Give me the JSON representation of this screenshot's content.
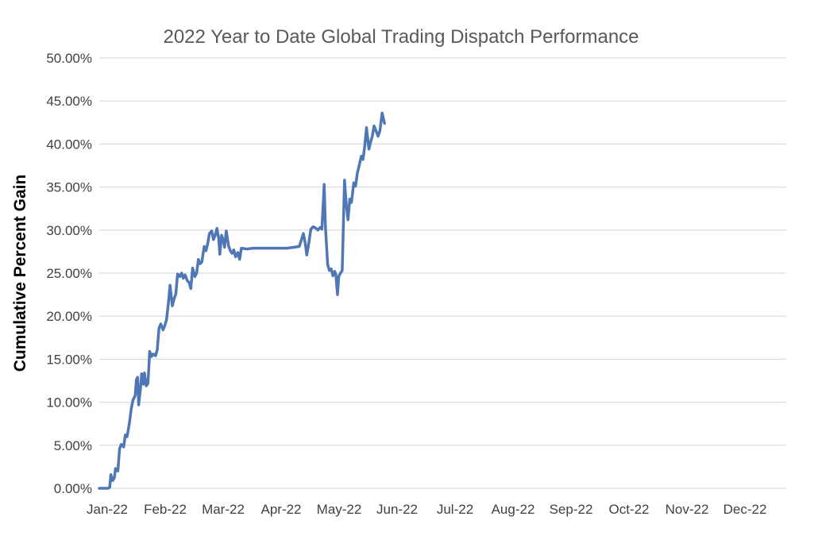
{
  "chart_data": {
    "type": "line",
    "title": "2022 Year to Date Global Trading Dispatch Performance",
    "xlabel": "",
    "ylabel": "Cumulative Percent Gain",
    "x_tick_labels": [
      "Jan-22",
      "Feb-22",
      "Mar-22",
      "Apr-22",
      "May-22",
      "Jun-22",
      "Jul-22",
      "Aug-22",
      "Sep-22",
      "Oct-22",
      "Nov-22",
      "Dec-22"
    ],
    "y_tick_labels": [
      "0.00%",
      "5.00%",
      "10.00%",
      "15.00%",
      "20.00%",
      "25.00%",
      "30.00%",
      "35.00%",
      "40.00%",
      "45.00%",
      "50.00%"
    ],
    "ylim": [
      0,
      50
    ],
    "xlim_months": [
      0,
      12
    ],
    "grid": "horizontal",
    "legend": "none",
    "line_color": "#4f77b6",
    "grid_color": "#d6d6d6",
    "series": [
      {
        "name": "Cumulative Percent Gain",
        "units": "percent",
        "x_units": "months since Jan-22",
        "points": [
          [
            0.0,
            0.0
          ],
          [
            0.15,
            0.0
          ],
          [
            0.18,
            0.1
          ],
          [
            0.2,
            1.6
          ],
          [
            0.23,
            0.9
          ],
          [
            0.26,
            1.2
          ],
          [
            0.28,
            2.3
          ],
          [
            0.32,
            2.0
          ],
          [
            0.35,
            4.6
          ],
          [
            0.38,
            5.1
          ],
          [
            0.42,
            4.8
          ],
          [
            0.45,
            6.2
          ],
          [
            0.48,
            6.0
          ],
          [
            0.52,
            7.6
          ],
          [
            0.55,
            9.2
          ],
          [
            0.58,
            10.2
          ],
          [
            0.62,
            10.8
          ],
          [
            0.64,
            12.6
          ],
          [
            0.66,
            12.9
          ],
          [
            0.68,
            9.7
          ],
          [
            0.71,
            11.5
          ],
          [
            0.73,
            13.3
          ],
          [
            0.76,
            12.1
          ],
          [
            0.78,
            13.4
          ],
          [
            0.81,
            11.9
          ],
          [
            0.84,
            12.2
          ],
          [
            0.87,
            15.9
          ],
          [
            0.9,
            15.3
          ],
          [
            0.93,
            15.6
          ],
          [
            0.97,
            15.4
          ],
          [
            1.0,
            16.1
          ],
          [
            1.03,
            18.6
          ],
          [
            1.06,
            19.1
          ],
          [
            1.1,
            18.4
          ],
          [
            1.13,
            18.9
          ],
          [
            1.16,
            19.6
          ],
          [
            1.19,
            21.4
          ],
          [
            1.22,
            23.6
          ],
          [
            1.26,
            21.2
          ],
          [
            1.29,
            22.0
          ],
          [
            1.32,
            22.6
          ],
          [
            1.35,
            24.9
          ],
          [
            1.39,
            24.6
          ],
          [
            1.42,
            25.0
          ],
          [
            1.45,
            24.4
          ],
          [
            1.48,
            24.8
          ],
          [
            1.52,
            24.1
          ],
          [
            1.55,
            23.9
          ],
          [
            1.58,
            23.2
          ],
          [
            1.61,
            25.6
          ],
          [
            1.65,
            24.6
          ],
          [
            1.68,
            25.0
          ],
          [
            1.71,
            26.6
          ],
          [
            1.74,
            26.1
          ],
          [
            1.77,
            26.3
          ],
          [
            1.81,
            28.1
          ],
          [
            1.84,
            27.6
          ],
          [
            1.87,
            28.4
          ],
          [
            1.9,
            29.6
          ],
          [
            1.94,
            29.9
          ],
          [
            1.97,
            28.9
          ],
          [
            2.0,
            29.4
          ],
          [
            2.03,
            30.2
          ],
          [
            2.06,
            29.0
          ],
          [
            2.08,
            27.2
          ],
          [
            2.11,
            29.4
          ],
          [
            2.14,
            28.8
          ],
          [
            2.16,
            28.0
          ],
          [
            2.19,
            29.9
          ],
          [
            2.23,
            28.2
          ],
          [
            2.26,
            27.6
          ],
          [
            2.29,
            27.3
          ],
          [
            2.32,
            27.7
          ],
          [
            2.35,
            26.9
          ],
          [
            2.39,
            27.4
          ],
          [
            2.42,
            26.6
          ],
          [
            2.45,
            27.9
          ],
          [
            2.55,
            27.8
          ],
          [
            2.65,
            27.9
          ],
          [
            2.77,
            27.9
          ],
          [
            2.9,
            27.9
          ],
          [
            3.0,
            27.9
          ],
          [
            3.1,
            27.9
          ],
          [
            3.23,
            27.9
          ],
          [
            3.35,
            28.0
          ],
          [
            3.45,
            28.1
          ],
          [
            3.52,
            29.6
          ],
          [
            3.55,
            28.6
          ],
          [
            3.58,
            27.1
          ],
          [
            3.61,
            28.3
          ],
          [
            3.65,
            30.1
          ],
          [
            3.69,
            30.4
          ],
          [
            3.74,
            30.2
          ],
          [
            3.77,
            30.0
          ],
          [
            3.81,
            30.3
          ],
          [
            3.84,
            30.1
          ],
          [
            3.88,
            35.3
          ],
          [
            3.9,
            30.5
          ],
          [
            3.94,
            26.0
          ],
          [
            3.97,
            25.3
          ],
          [
            4.0,
            25.5
          ],
          [
            4.03,
            24.7
          ],
          [
            4.06,
            25.2
          ],
          [
            4.08,
            24.9
          ],
          [
            4.11,
            22.5
          ],
          [
            4.13,
            24.6
          ],
          [
            4.16,
            25.0
          ],
          [
            4.19,
            25.3
          ],
          [
            4.23,
            35.8
          ],
          [
            4.26,
            33.0
          ],
          [
            4.29,
            31.2
          ],
          [
            4.32,
            33.6
          ],
          [
            4.35,
            33.2
          ],
          [
            4.39,
            35.5
          ],
          [
            4.42,
            35.1
          ],
          [
            4.45,
            36.6
          ],
          [
            4.48,
            37.4
          ],
          [
            4.52,
            38.6
          ],
          [
            4.55,
            38.2
          ],
          [
            4.58,
            39.8
          ],
          [
            4.61,
            41.9
          ],
          [
            4.65,
            39.4
          ],
          [
            4.68,
            40.2
          ],
          [
            4.71,
            40.9
          ],
          [
            4.74,
            42.1
          ],
          [
            4.77,
            41.6
          ],
          [
            4.81,
            40.9
          ],
          [
            4.84,
            41.5
          ],
          [
            4.88,
            43.6
          ],
          [
            4.92,
            42.4
          ]
        ]
      }
    ]
  }
}
